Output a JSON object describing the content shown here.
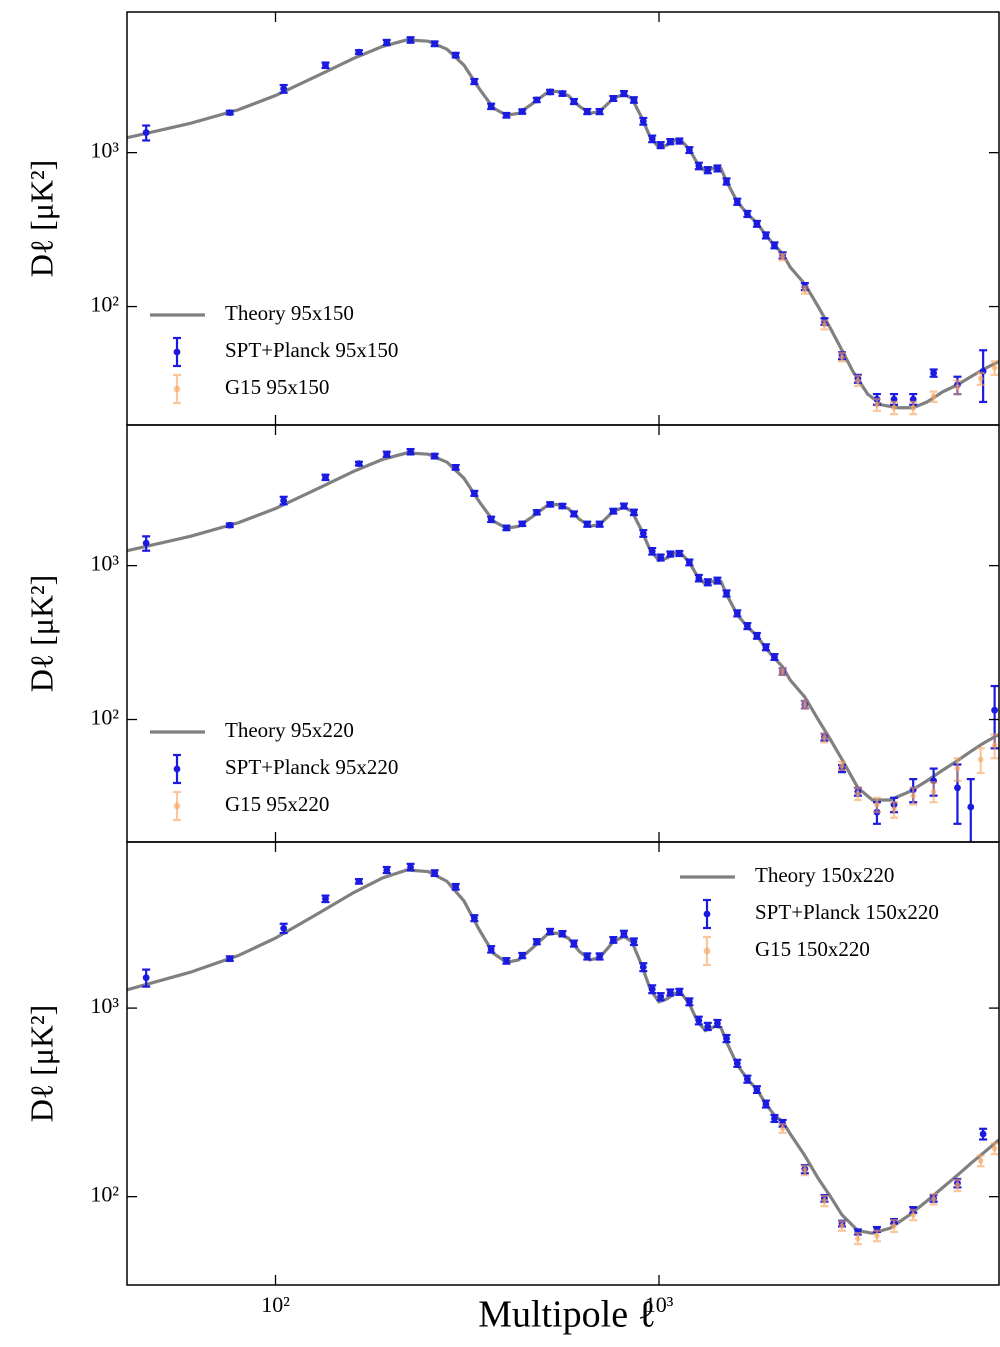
{
  "chart_data": [
    {
      "type": "errorbar",
      "ylabel": "Dℓ [μK²]",
      "xscale": "log",
      "yscale": "log",
      "xlim": [
        41,
        7700
      ],
      "ylim": [
        17,
        8200
      ],
      "xticks": [
        100,
        1000
      ],
      "yticks": [
        {
          "value": 100,
          "label": "10²"
        },
        {
          "value": 1000,
          "label": "10³"
        }
      ],
      "legend": "lower left",
      "series": [
        {
          "name": "Theory 95x150",
          "color": "#808080",
          "x": [
            41,
            60,
            80,
            100,
            130,
            160,
            190,
            220,
            250,
            280,
            310,
            340,
            370,
            400,
            430,
            470,
            510,
            540,
            580,
            620,
            660,
            700,
            760,
            810,
            850,
            900,
            950,
            1000,
            1050,
            1100,
            1150,
            1200,
            1260,
            1320,
            1400,
            1450,
            1500,
            1600,
            1700,
            1800,
            1900,
            2000,
            2100,
            2200,
            2400,
            2600,
            2800,
            3000,
            3200,
            3500,
            3800,
            4200,
            4600,
            5000,
            5500,
            6000,
            6500,
            7000,
            7700
          ],
          "values": [
            1250,
            1550,
            1900,
            2350,
            3200,
            4100,
            4900,
            5400,
            5300,
            4700,
            3700,
            2600,
            1950,
            1750,
            1800,
            2100,
            2450,
            2500,
            2350,
            2000,
            1800,
            1850,
            2250,
            2400,
            2250,
            1700,
            1250,
            1080,
            1120,
            1200,
            1180,
            1050,
            850,
            760,
            800,
            790,
            650,
            480,
            400,
            350,
            290,
            250,
            220,
            180,
            140,
            100,
            72,
            52,
            38,
            27,
            23,
            22,
            22,
            24,
            28,
            31,
            35,
            39,
            44
          ]
        },
        {
          "name": "SPT+Planck 95x150",
          "color": "#1a1ae0",
          "x": [
            46,
            76,
            105,
            135,
            165,
            195,
            225,
            260,
            295,
            330,
            365,
            400,
            440,
            480,
            520,
            560,
            600,
            650,
            700,
            760,
            810,
            860,
            910,
            960,
            1010,
            1070,
            1130,
            1200,
            1270,
            1340,
            1420,
            1500,
            1600,
            1700,
            1800,
            1900,
            2000,
            2100,
            2400,
            2700,
            3000,
            3300,
            3700,
            4100,
            4600,
            5200,
            6000,
            7000
          ],
          "values": [
            1350,
            1820,
            2600,
            3700,
            4500,
            5200,
            5400,
            5100,
            4300,
            2900,
            2000,
            1750,
            1850,
            2200,
            2480,
            2420,
            2150,
            1850,
            1850,
            2250,
            2420,
            2200,
            1600,
            1230,
            1120,
            1180,
            1190,
            1040,
            820,
            770,
            790,
            650,
            480,
            400,
            345,
            290,
            250,
            215,
            135,
            80,
            48,
            34,
            25,
            25,
            25,
            37,
            31,
            38
          ],
          "errors": [
            150,
            50,
            150,
            150,
            130,
            200,
            220,
            180,
            150,
            110,
            80,
            60,
            60,
            70,
            80,
            80,
            80,
            70,
            70,
            80,
            90,
            90,
            80,
            60,
            50,
            45,
            45,
            45,
            40,
            35,
            35,
            30,
            22,
            18,
            15,
            13,
            11,
            10,
            7,
            4,
            2.5,
            2,
            2,
            2,
            2,
            2,
            4,
            14
          ]
        },
        {
          "name": "G15 95x150",
          "color": "#f7a35c",
          "x": [
            2100,
            2400,
            2700,
            3000,
            3300,
            3700,
            4100,
            4600,
            5200,
            6000,
            6900,
            7500
          ],
          "values": [
            210,
            128,
            76,
            47,
            33,
            23,
            22,
            22,
            26,
            30,
            34,
            40
          ],
          "errors": [
            10,
            7,
            5,
            3,
            2.5,
            2,
            2,
            2,
            2,
            3,
            3,
            4
          ]
        }
      ]
    },
    {
      "type": "errorbar",
      "ylabel": "Dℓ [μK²]",
      "xscale": "log",
      "yscale": "log",
      "xlim": [
        41,
        7700
      ],
      "ylim": [
        16,
        8200
      ],
      "xticks": [
        100,
        1000
      ],
      "yticks": [
        {
          "value": 100,
          "label": "10²"
        },
        {
          "value": 1000,
          "label": "10³"
        }
      ],
      "legend": "lower left",
      "series": [
        {
          "name": "Theory 95x220",
          "color": "#808080",
          "x": [
            41,
            60,
            80,
            100,
            130,
            160,
            190,
            220,
            250,
            280,
            310,
            340,
            370,
            400,
            430,
            470,
            510,
            540,
            580,
            620,
            660,
            700,
            760,
            810,
            850,
            900,
            950,
            1000,
            1050,
            1100,
            1150,
            1200,
            1260,
            1320,
            1400,
            1450,
            1500,
            1600,
            1700,
            1800,
            1900,
            2000,
            2100,
            2200,
            2400,
            2600,
            2800,
            3000,
            3300,
            3600,
            4000,
            4500,
            5000,
            5500,
            6000,
            6500,
            7000,
            7700
          ],
          "values": [
            1250,
            1550,
            1900,
            2350,
            3200,
            4100,
            4900,
            5400,
            5300,
            4700,
            3700,
            2600,
            1950,
            1750,
            1800,
            2100,
            2450,
            2500,
            2350,
            2000,
            1800,
            1850,
            2250,
            2400,
            2250,
            1700,
            1250,
            1080,
            1120,
            1200,
            1180,
            1050,
            850,
            760,
            800,
            790,
            650,
            480,
            400,
            350,
            290,
            250,
            220,
            180,
            140,
            100,
            74,
            55,
            36,
            30,
            30,
            34,
            40,
            47,
            54,
            62,
            70,
            80
          ]
        },
        {
          "name": "SPT+Planck 95x220",
          "color": "#1a1ae0",
          "x": [
            46,
            76,
            105,
            135,
            165,
            195,
            225,
            260,
            295,
            330,
            365,
            400,
            440,
            480,
            520,
            560,
            600,
            650,
            700,
            760,
            810,
            860,
            910,
            960,
            1010,
            1070,
            1130,
            1200,
            1270,
            1340,
            1420,
            1500,
            1600,
            1700,
            1800,
            1900,
            2000,
            2100,
            2400,
            2700,
            3000,
            3300,
            3700,
            4100,
            4600,
            5200,
            6000,
            6500,
            7500
          ],
          "values": [
            1400,
            1830,
            2650,
            3750,
            4600,
            5300,
            5500,
            5150,
            4350,
            2950,
            2000,
            1760,
            1870,
            2220,
            2500,
            2440,
            2170,
            1860,
            1860,
            2260,
            2440,
            2220,
            1620,
            1240,
            1130,
            1190,
            1200,
            1050,
            830,
            780,
            800,
            660,
            490,
            405,
            350,
            295,
            255,
            205,
            125,
            77,
            48,
            34,
            25,
            28,
            35,
            40,
            36,
            27,
            115
          ],
          "errors": [
            150,
            50,
            150,
            150,
            130,
            200,
            220,
            180,
            150,
            110,
            80,
            60,
            60,
            70,
            80,
            80,
            80,
            70,
            70,
            80,
            90,
            90,
            80,
            60,
            50,
            45,
            45,
            45,
            40,
            35,
            35,
            30,
            22,
            18,
            15,
            13,
            11,
            10,
            7,
            4,
            2.5,
            2,
            4,
            3,
            6,
            8,
            15,
            14,
            50
          ]
        },
        {
          "name": "G15 95x220",
          "color": "#f7a35c",
          "x": [
            2100,
            2400,
            2700,
            3000,
            3300,
            3700,
            4100,
            4600,
            5200,
            6000,
            6900,
            7500
          ],
          "values": [
            205,
            125,
            76,
            50,
            33,
            28,
            26,
            32,
            34,
            48,
            55,
            68
          ],
          "errors": [
            10,
            7,
            5,
            3,
            3,
            3,
            3,
            4,
            5,
            8,
            10,
            12
          ]
        }
      ]
    },
    {
      "type": "errorbar",
      "ylabel": "Dℓ [μK²]",
      "xlabel": "Multipole ℓ",
      "xscale": "log",
      "yscale": "log",
      "xlim": [
        41,
        7700
      ],
      "ylim": [
        34,
        7600
      ],
      "xticks": [
        {
          "value": 100,
          "label": "10²"
        },
        {
          "value": 1000,
          "label": "10³"
        }
      ],
      "yticks": [
        {
          "value": 100,
          "label": "10²"
        },
        {
          "value": 1000,
          "label": "10³"
        }
      ],
      "legend": "upper right",
      "series": [
        {
          "name": "Theory 150x220",
          "color": "#808080",
          "x": [
            41,
            60,
            80,
            100,
            130,
            160,
            190,
            220,
            250,
            280,
            310,
            340,
            370,
            400,
            430,
            470,
            510,
            540,
            580,
            620,
            660,
            700,
            760,
            810,
            850,
            900,
            950,
            1000,
            1050,
            1100,
            1150,
            1200,
            1260,
            1320,
            1400,
            1450,
            1500,
            1600,
            1700,
            1800,
            1900,
            2000,
            2100,
            2200,
            2400,
            2600,
            2800,
            3000,
            3300,
            3600,
            4000,
            4500,
            5000,
            5500,
            6000,
            6500,
            7000,
            7700
          ],
          "values": [
            1250,
            1550,
            1900,
            2350,
            3200,
            4100,
            4900,
            5400,
            5300,
            4700,
            3700,
            2600,
            1950,
            1750,
            1800,
            2100,
            2450,
            2500,
            2350,
            2000,
            1800,
            1850,
            2250,
            2400,
            2250,
            1700,
            1250,
            1080,
            1120,
            1200,
            1180,
            1050,
            850,
            760,
            800,
            790,
            660,
            500,
            420,
            370,
            310,
            270,
            250,
            215,
            165,
            125,
            100,
            80,
            66,
            64,
            68,
            80,
            95,
            112,
            130,
            150,
            170,
            200
          ]
        },
        {
          "name": "SPT+Planck 150x220",
          "color": "#1a1ae0",
          "x": [
            46,
            76,
            105,
            135,
            165,
            195,
            225,
            260,
            295,
            330,
            365,
            400,
            440,
            480,
            520,
            560,
            600,
            650,
            700,
            760,
            810,
            860,
            910,
            960,
            1010,
            1070,
            1130,
            1200,
            1270,
            1340,
            1420,
            1500,
            1600,
            1700,
            1800,
            1900,
            2000,
            2100,
            2400,
            2700,
            3000,
            3300,
            3700,
            4100,
            4600,
            5200,
            6000,
            7000
          ],
          "values": [
            1450,
            1830,
            2650,
            3800,
            4700,
            5400,
            5600,
            5200,
            4400,
            3000,
            2050,
            1780,
            1900,
            2250,
            2550,
            2480,
            2200,
            1880,
            1880,
            2300,
            2480,
            2250,
            1650,
            1260,
            1150,
            1210,
            1220,
            1080,
            860,
            800,
            830,
            690,
            510,
            420,
            370,
            310,
            260,
            245,
            140,
            98,
            72,
            65,
            67,
            74,
            85,
            98,
            118,
            215
          ],
          "errors": [
            150,
            50,
            150,
            150,
            130,
            200,
            220,
            180,
            150,
            110,
            80,
            60,
            60,
            70,
            80,
            80,
            80,
            70,
            70,
            80,
            90,
            90,
            80,
            60,
            50,
            45,
            45,
            45,
            40,
            35,
            35,
            30,
            22,
            18,
            15,
            13,
            11,
            10,
            7,
            4,
            2.5,
            2,
            2,
            2,
            3,
            4,
            6,
            14
          ]
        },
        {
          "name": "G15 150x220",
          "color": "#f7a35c",
          "x": [
            2100,
            2400,
            2700,
            3000,
            3300,
            3700,
            4100,
            4600,
            5200,
            6000,
            6900,
            7500
          ],
          "values": [
            230,
            138,
            95,
            70,
            60,
            62,
            70,
            80,
            97,
            115,
            155,
            180
          ],
          "errors": [
            12,
            8,
            6,
            4,
            4,
            4,
            5,
            5,
            6,
            8,
            10,
            12
          ]
        }
      ]
    }
  ]
}
